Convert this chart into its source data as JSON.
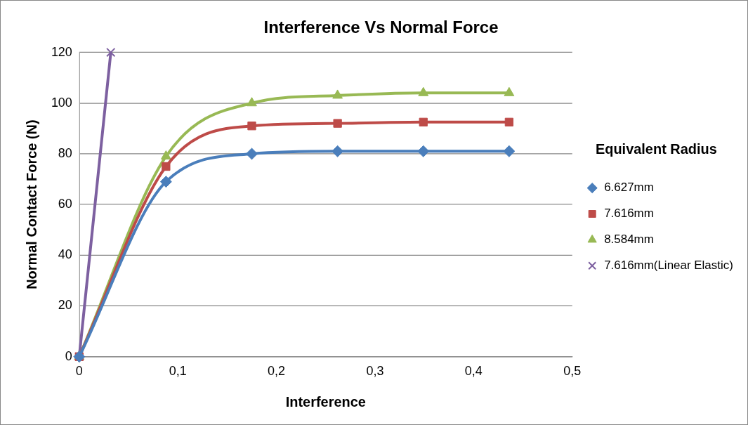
{
  "chart_data": {
    "type": "line",
    "title": "Interference Vs Normal Force",
    "xlabel": "Interference",
    "ylabel": "Normal Contact Force (N)",
    "legend_title": "Equivalent Radius",
    "legend": "right",
    "grid": "y",
    "xlim": [
      0,
      0.5
    ],
    "xticks": [
      0,
      {
        "value": 0.1,
        "label": "0,1"
      },
      {
        "value": 0.2,
        "label": "0,2"
      },
      {
        "value": 0.3,
        "label": "0,3"
      },
      {
        "value": 0.4,
        "label": "0,4"
      },
      {
        "value": 0.5,
        "label": "0,5"
      }
    ],
    "ylim": [
      0,
      120
    ],
    "yticks": [
      0,
      20,
      40,
      60,
      80,
      100,
      120
    ],
    "series": [
      {
        "name": "6.627mm",
        "color": "#4a7ebb",
        "marker": "diamond",
        "x": [
          0,
          0.088,
          0.175,
          0.262,
          0.349,
          0.436
        ],
        "values": [
          0,
          69,
          80,
          81,
          81,
          81
        ]
      },
      {
        "name": "7.616mm",
        "color": "#be4b48",
        "marker": "square",
        "x": [
          0,
          0.088,
          0.175,
          0.262,
          0.349,
          0.436
        ],
        "values": [
          0,
          75,
          91,
          92,
          92.5,
          92.5
        ]
      },
      {
        "name": "8.584mm",
        "color": "#98b954",
        "marker": "triangle",
        "x": [
          0,
          0.088,
          0.175,
          0.262,
          0.349,
          0.436
        ],
        "values": [
          0,
          79,
          100,
          103,
          104,
          104
        ]
      },
      {
        "name": "7.616mm(Linear Elastic)",
        "color": "#7d60a0",
        "marker": "cross",
        "x": [
          0,
          0.032
        ],
        "values": [
          0,
          120
        ]
      }
    ]
  }
}
